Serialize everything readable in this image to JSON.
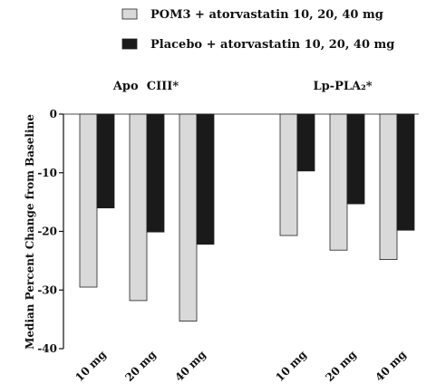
{
  "chart_data": {
    "type": "bar",
    "groups": [
      {
        "label": "Apo  CIII*",
        "categories": [
          "10 mg",
          "20 mg",
          "40 mg"
        ],
        "series": [
          {
            "name": "POM3 + atorvastatin 10, 20, 40 mg",
            "color": "#d9d9d9",
            "values": [
              -29.5,
              -31.8,
              -35.3
            ]
          },
          {
            "name": "Placebo + atorvastatin 10, 20, 40 mg",
            "color": "#1a1a1a",
            "values": [
              -16.0,
              -20.1,
              -22.2
            ]
          }
        ]
      },
      {
        "label": "Lp-PLA₂*",
        "categories": [
          "10 mg",
          "20 mg",
          "40 mg"
        ],
        "series": [
          {
            "name": "POM3 + atorvastatin 10, 20, 40 mg",
            "color": "#d9d9d9",
            "values": [
              -20.7,
              -23.2,
              -24.8
            ]
          },
          {
            "name": "Placebo + atorvastatin 10, 20, 40 mg",
            "color": "#1a1a1a",
            "values": [
              -9.7,
              -15.3,
              -19.8
            ]
          }
        ]
      }
    ],
    "legend": [
      {
        "name": "POM3 + atorvastatin 10, 20, 40 mg",
        "color": "#d9d9d9"
      },
      {
        "name": "Placebo + atorvastatin 10, 20, 40 mg",
        "color": "#1a1a1a"
      }
    ],
    "ylabel": "Median Percent Change from Baseline",
    "ylim": [
      -40,
      0
    ],
    "yticks": [
      0,
      -10,
      -20,
      -30,
      -40
    ],
    "legend_position": "top-center",
    "grid": false
  }
}
